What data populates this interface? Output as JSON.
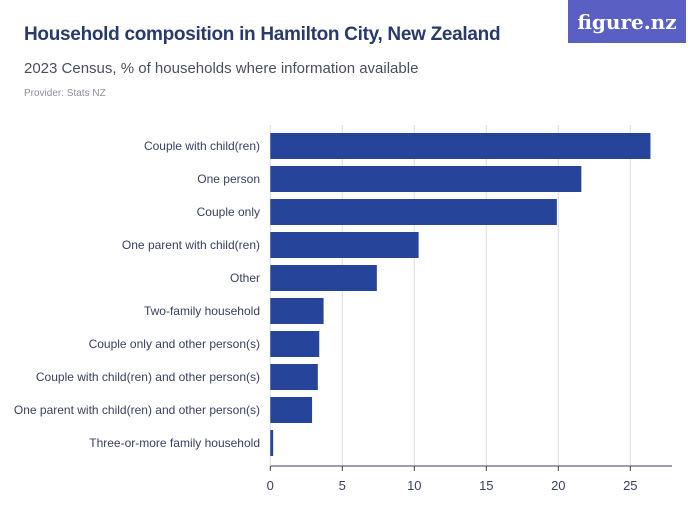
{
  "header": {
    "title": "Household composition in Hamilton City, New Zealand",
    "subtitle": "2023 Census, % of households where information available",
    "provider": "Provider: Stats NZ",
    "logo": "figure.nz"
  },
  "colors": {
    "bar": "#27449b",
    "grid": "#dcdcdc",
    "axis": "#3a4060",
    "logo_bg": "#5a5fc4"
  },
  "chart_data": {
    "type": "bar",
    "orientation": "horizontal",
    "title": "Household composition in Hamilton City, New Zealand",
    "subtitle": "2023 Census, % of households where information available",
    "categories": [
      "Couple with child(ren)",
      "One person",
      "Couple only",
      "One parent with child(ren)",
      "Other",
      "Two-family household",
      "Couple only and other person(s)",
      "Couple with child(ren) and other person(s)",
      "One parent with child(ren) and other person(s)",
      "Three-or-more family household"
    ],
    "values": [
      26.4,
      21.6,
      19.9,
      10.3,
      7.4,
      3.7,
      3.4,
      3.3,
      2.9,
      0.2
    ],
    "xlim": [
      0,
      27.9
    ],
    "xticks": [
      "0",
      "5",
      "10",
      "15",
      "20",
      "25"
    ],
    "grid": true
  }
}
